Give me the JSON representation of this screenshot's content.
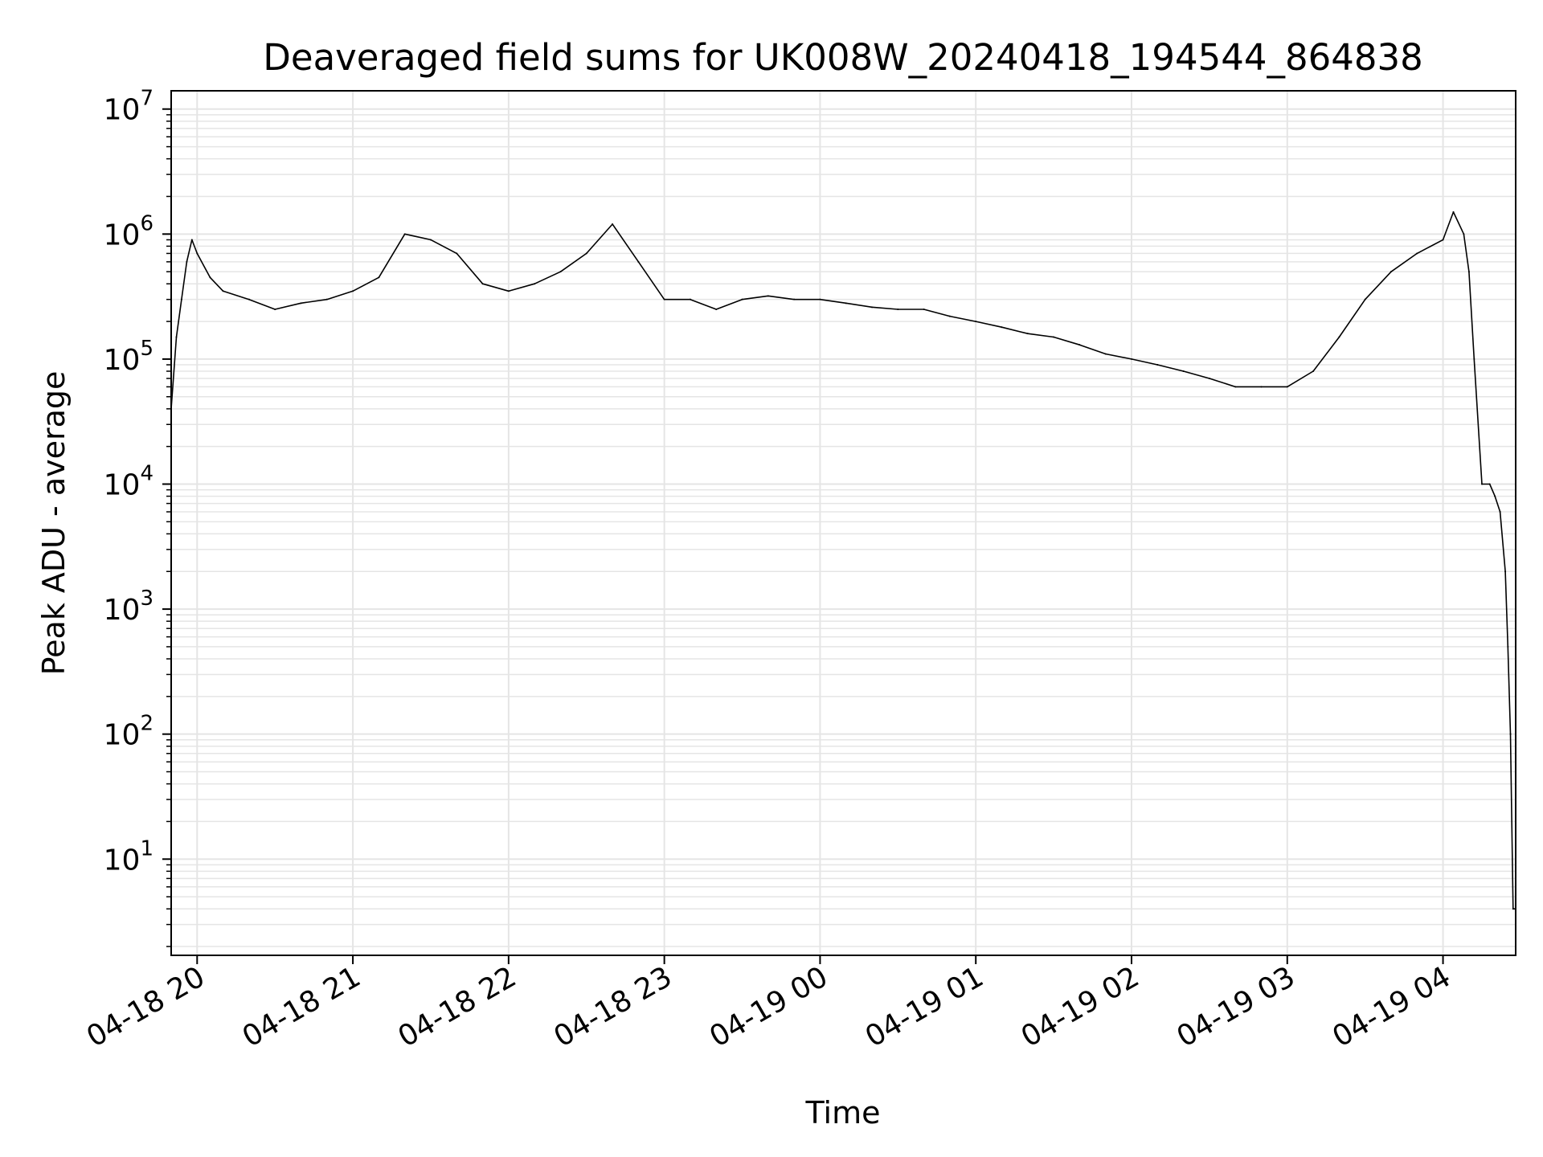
{
  "chart_data": {
    "type": "line",
    "title": "Deaveraged field sums for UK008W_20240418_194544_864838",
    "xlabel": "Time",
    "ylabel": "Peak ADU - average",
    "x_ticks": [
      "04-18 20",
      "04-18 21",
      "04-18 22",
      "04-18 23",
      "04-19 00",
      "04-19 01",
      "04-19 02",
      "04-19 03",
      "04-19 04"
    ],
    "x_tick_times": [
      "2024-04-18 20:00",
      "2024-04-18 21:00",
      "2024-04-18 22:00",
      "2024-04-18 23:00",
      "2024-04-19 00:00",
      "2024-04-19 01:00",
      "2024-04-19 02:00",
      "2024-04-19 03:00",
      "2024-04-19 04:00"
    ],
    "xlim": [
      "2024-04-18 19:50",
      "2024-04-19 04:28"
    ],
    "y_scale": "log",
    "ylim": [
      1.7,
      14000000
    ],
    "y_ticks": [
      {
        "base": "10",
        "exp": "1",
        "value": 10
      },
      {
        "base": "10",
        "exp": "2",
        "value": 100
      },
      {
        "base": "10",
        "exp": "3",
        "value": 1000
      },
      {
        "base": "10",
        "exp": "4",
        "value": 10000
      },
      {
        "base": "10",
        "exp": "5",
        "value": 100000
      },
      {
        "base": "10",
        "exp": "6",
        "value": 1000000
      },
      {
        "base": "10",
        "exp": "7",
        "value": 10000000
      }
    ],
    "grid": true,
    "legend": "none",
    "line_color": "#000000",
    "grid_color": "#e5e5e5",
    "series": [
      {
        "x": [
          "2024-04-18 19:50",
          "2024-04-18 19:52",
          "2024-04-18 19:54",
          "2024-04-18 19:56",
          "2024-04-18 19:58",
          "2024-04-18 20:00",
          "2024-04-18 20:05",
          "2024-04-18 20:10",
          "2024-04-18 20:20",
          "2024-04-18 20:30",
          "2024-04-18 20:40",
          "2024-04-18 20:50",
          "2024-04-18 21:00",
          "2024-04-18 21:10",
          "2024-04-18 21:20",
          "2024-04-18 21:30",
          "2024-04-18 21:40",
          "2024-04-18 21:50",
          "2024-04-18 22:00",
          "2024-04-18 22:10",
          "2024-04-18 22:20",
          "2024-04-18 22:30",
          "2024-04-18 22:40",
          "2024-04-18 22:50",
          "2024-04-18 23:00",
          "2024-04-18 23:10",
          "2024-04-18 23:20",
          "2024-04-18 23:30",
          "2024-04-18 23:40",
          "2024-04-18 23:50",
          "2024-04-19 00:00",
          "2024-04-19 00:10",
          "2024-04-19 00:20",
          "2024-04-19 00:30",
          "2024-04-19 00:40",
          "2024-04-19 00:50",
          "2024-04-19 01:00",
          "2024-04-19 01:10",
          "2024-04-19 01:20",
          "2024-04-19 01:30",
          "2024-04-19 01:40",
          "2024-04-19 01:50",
          "2024-04-19 02:00",
          "2024-04-19 02:10",
          "2024-04-19 02:20",
          "2024-04-19 02:30",
          "2024-04-19 02:40",
          "2024-04-19 02:50",
          "2024-04-19 03:00",
          "2024-04-19 03:10",
          "2024-04-19 03:20",
          "2024-04-19 03:30",
          "2024-04-19 03:40",
          "2024-04-19 03:50",
          "2024-04-19 04:00",
          "2024-04-19 04:04",
          "2024-04-19 04:08",
          "2024-04-19 04:10",
          "2024-04-19 04:12",
          "2024-04-19 04:15",
          "2024-04-19 04:18",
          "2024-04-19 04:20",
          "2024-04-19 04:22",
          "2024-04-19 04:24",
          "2024-04-19 04:25",
          "2024-04-19 04:26",
          "2024-04-19 04:27",
          "2024-04-19 04:28"
        ],
        "values": [
          40000,
          150000,
          300000,
          600000,
          900000,
          700000,
          450000,
          350000,
          300000,
          250000,
          280000,
          300000,
          350000,
          450000,
          1000000,
          900000,
          700000,
          400000,
          350000,
          400000,
          500000,
          700000,
          1200000,
          600000,
          300000,
          300000,
          250000,
          300000,
          320000,
          300000,
          300000,
          280000,
          260000,
          250000,
          250000,
          220000,
          200000,
          180000,
          160000,
          150000,
          130000,
          110000,
          100000,
          90000,
          80000,
          70000,
          60000,
          60000,
          60000,
          80000,
          150000,
          300000,
          500000,
          700000,
          900000,
          1500000,
          1000000,
          500000,
          100000,
          10000,
          10000,
          8000,
          6000,
          2000,
          500,
          100,
          4,
          4
        ]
      }
    ]
  }
}
